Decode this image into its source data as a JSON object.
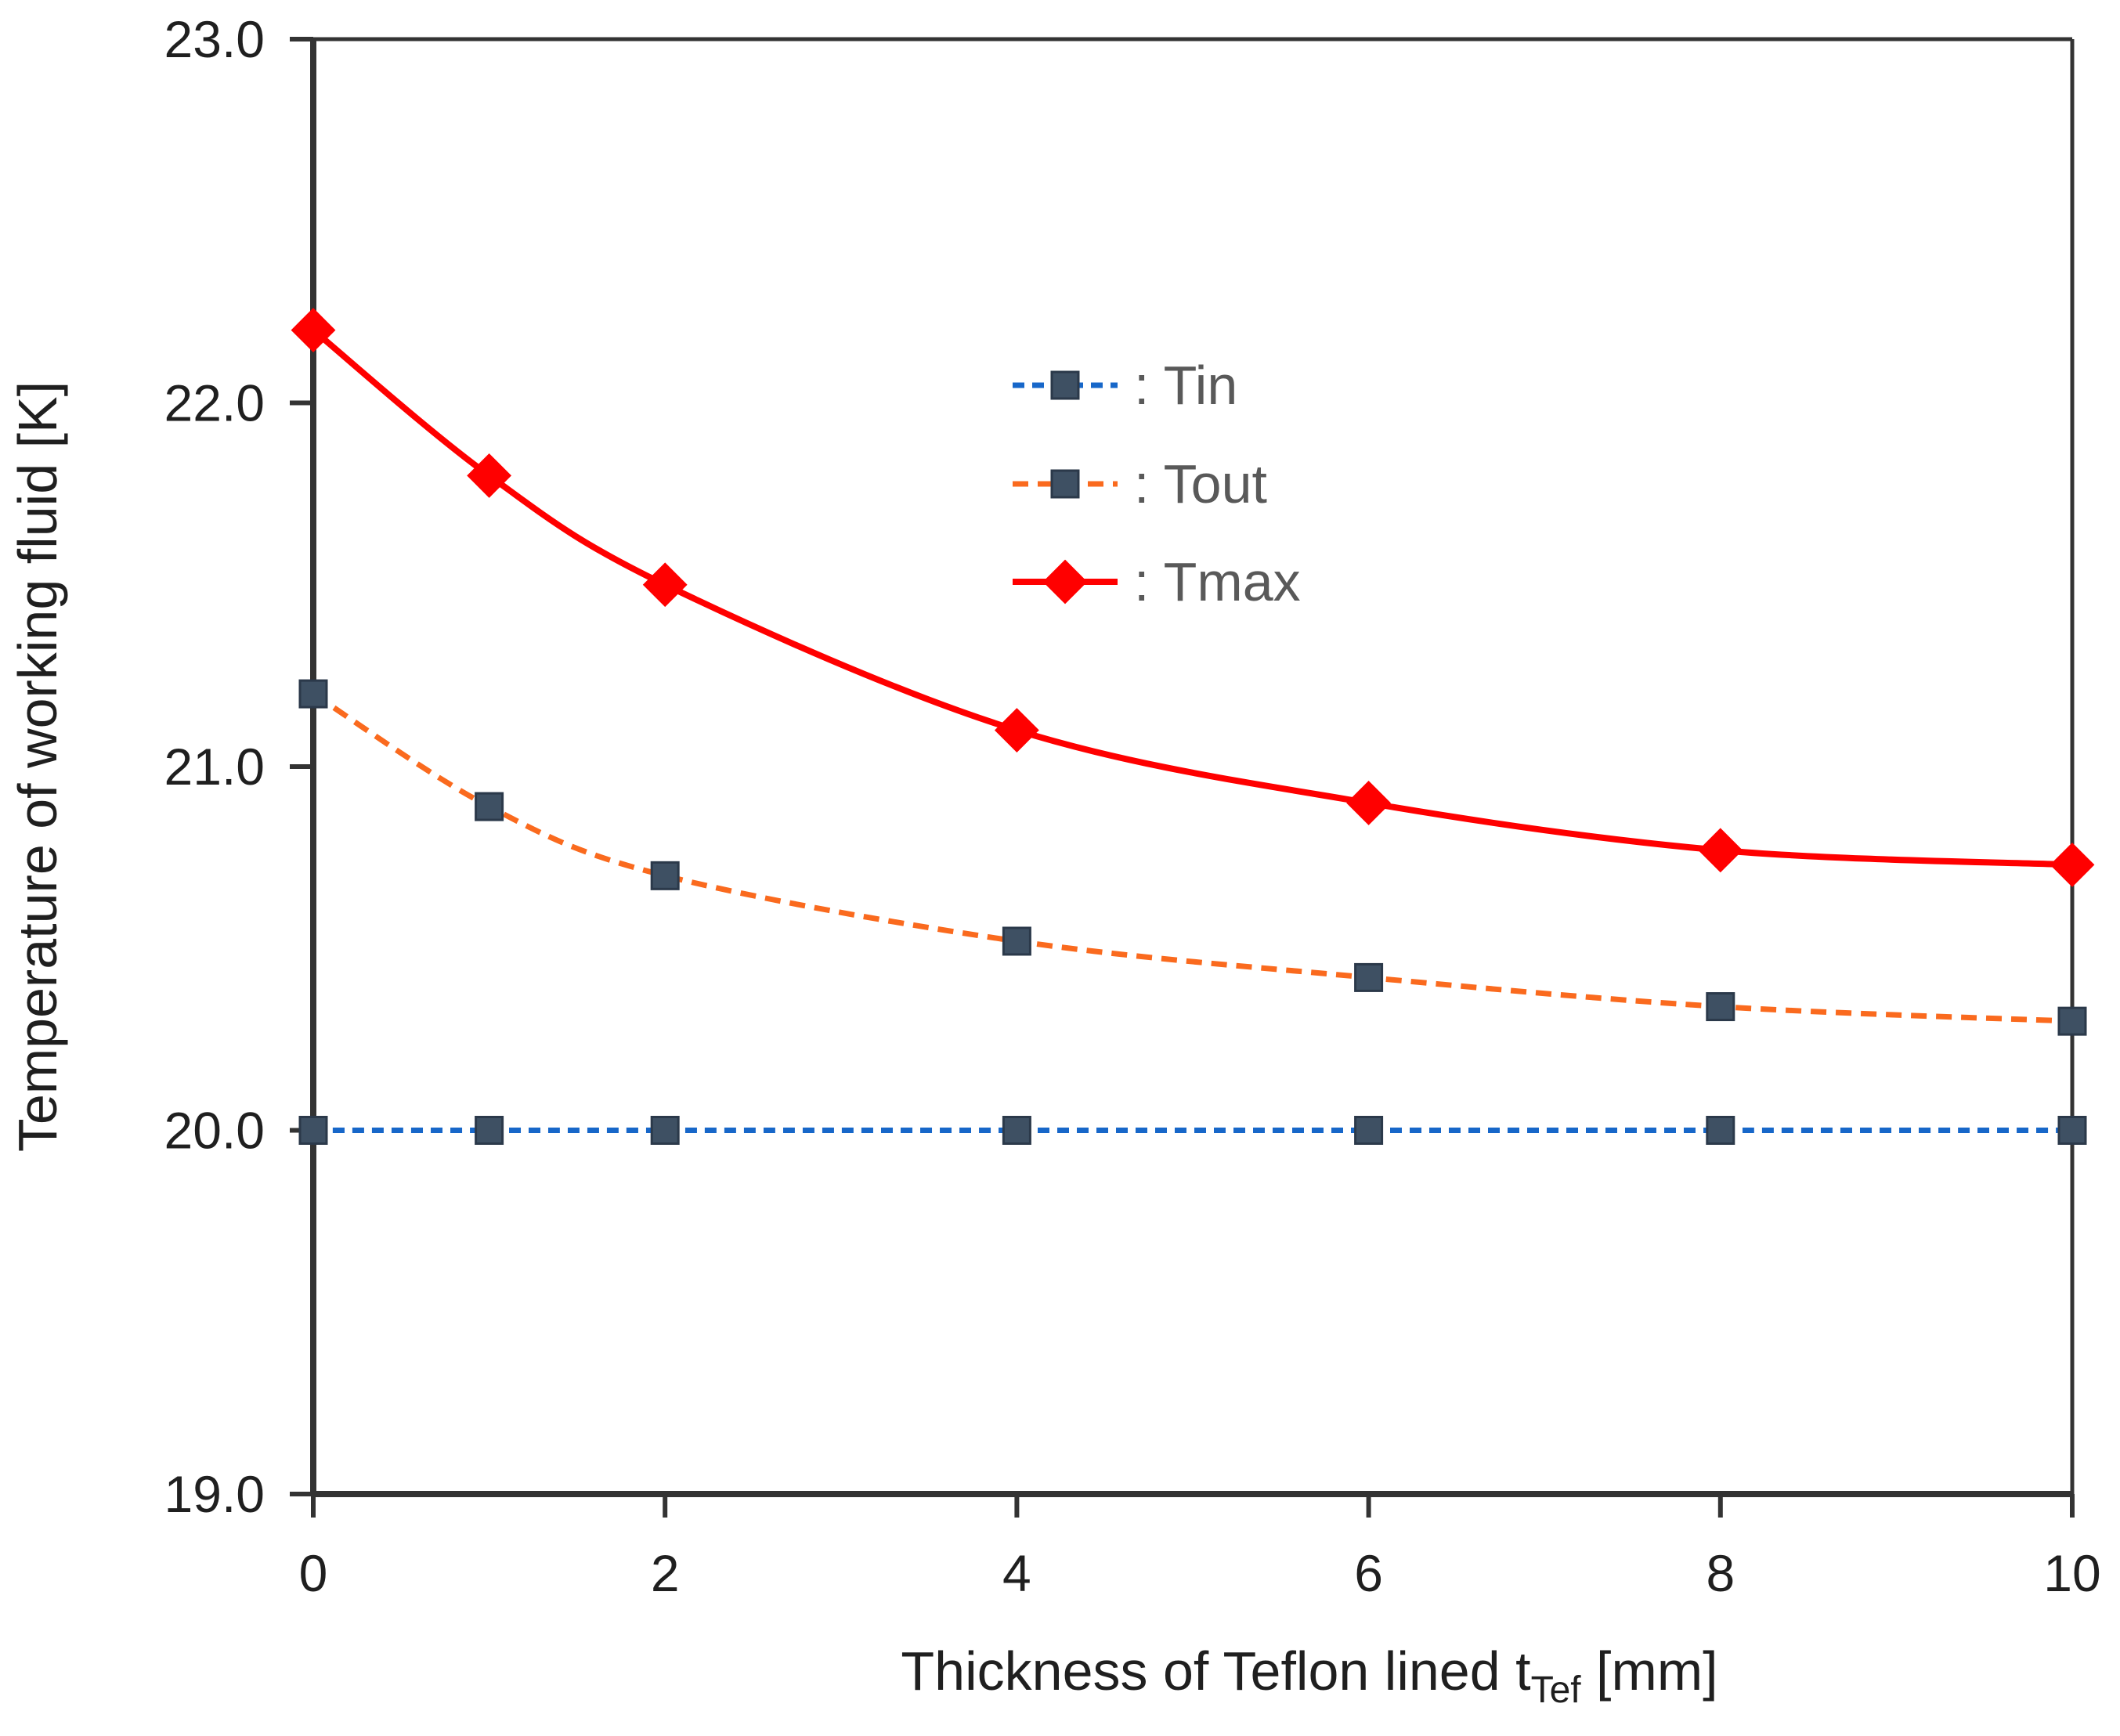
{
  "chart_data": {
    "type": "line",
    "title": "",
    "xlabel": "Thickness of Teflon lined t_Tef [mm]",
    "xlabel_parts": {
      "main": "Thickness of Teflon lined t",
      "sub": "Tef",
      "unit": " [mm]"
    },
    "ylabel": "Temperature of working fluid [K]",
    "xlim": [
      0,
      10
    ],
    "ylim": [
      19.0,
      23.0
    ],
    "x_ticks": [
      0,
      2,
      4,
      6,
      8,
      10
    ],
    "x_tick_labels": [
      "0",
      "2",
      "4",
      "6",
      "8",
      "10"
    ],
    "y_ticks": [
      23.0,
      22.0,
      21.0,
      20.0,
      19.0
    ],
    "y_tick_labels": [
      "23.0",
      "22.0",
      "21.0",
      "20.0",
      "19.0"
    ],
    "x": [
      0,
      1,
      2,
      4,
      6,
      8,
      10
    ],
    "series": [
      {
        "name": "Tin",
        "legend_label": ": Tin",
        "values": [
          20.0,
          20.0,
          20.0,
          20.0,
          20.0,
          20.0,
          20.0
        ],
        "line_color": "#1767C9",
        "line_style": "dashed",
        "marker": "square",
        "marker_fill": "#3E5063",
        "marker_stroke": "#2B394A"
      },
      {
        "name": "Tout",
        "legend_label": ": Tout",
        "values": [
          21.2,
          20.89,
          20.7,
          20.52,
          20.42,
          20.34,
          20.3
        ],
        "line_color": "#FA6A1E",
        "line_style": "dashed",
        "marker": "square",
        "marker_fill": "#3E5063",
        "marker_stroke": "#2B394A"
      },
      {
        "name": "Tmax",
        "legend_label": ": Tmax",
        "values": [
          22.2,
          21.8,
          21.5,
          21.1,
          20.9,
          20.77,
          20.73
        ],
        "line_color": "#FF0000",
        "line_style": "solid",
        "marker": "diamond",
        "marker_fill": "#FF0000",
        "marker_stroke": "#FF0000"
      }
    ],
    "legend_position": "upper center",
    "grid": false,
    "background": "#FFFFFF",
    "text_color": "#1F1F1F",
    "legend_text_color": "#595959",
    "axis_color": "#333333"
  }
}
